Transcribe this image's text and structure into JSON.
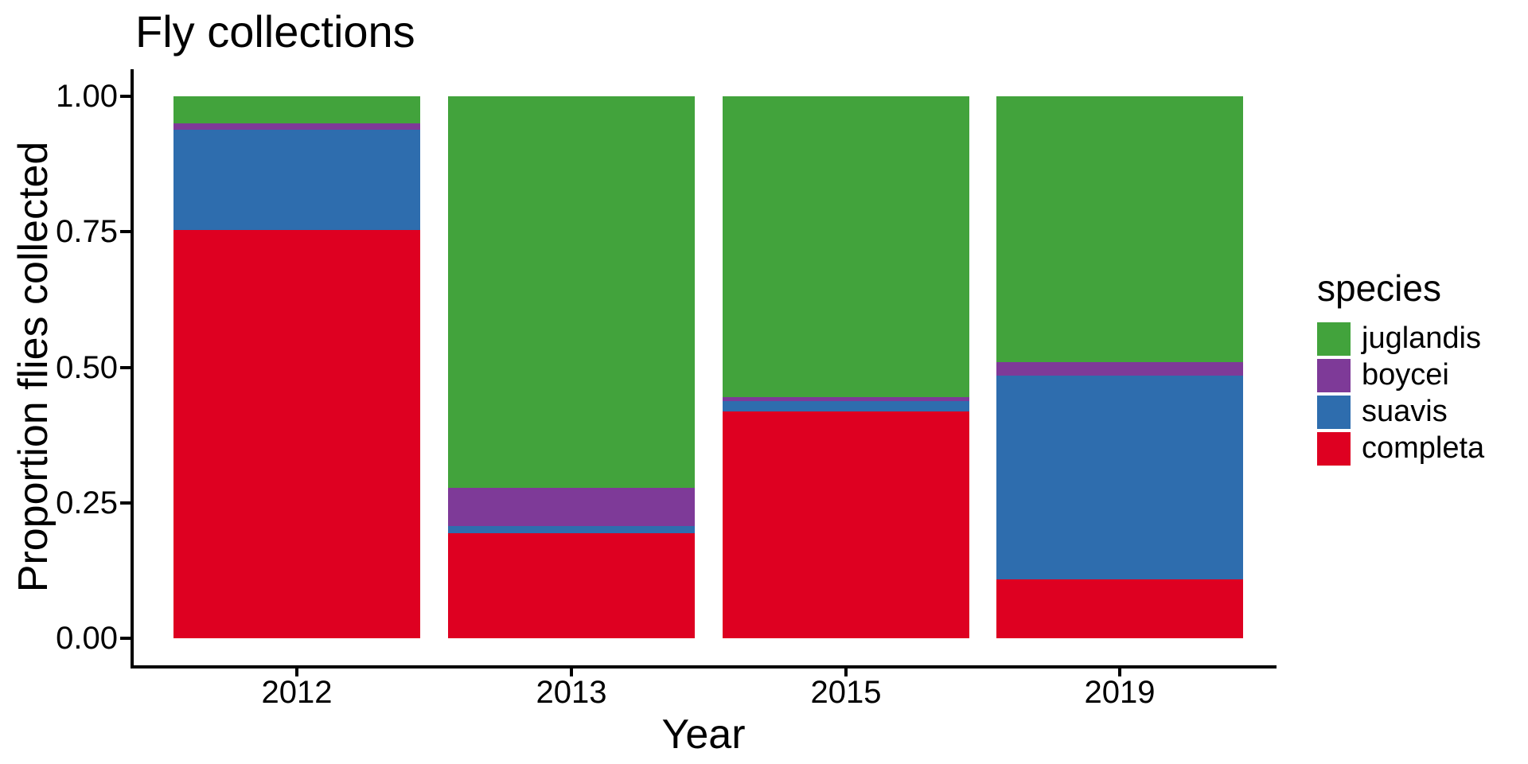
{
  "figure": {
    "title": "Fly collections",
    "background": "#FFFFFF",
    "text_color": "#000000",
    "axis_color": "#000000"
  },
  "chart_data": {
    "type": "bar",
    "variant": "stacked-normalized",
    "title": "Fly collections",
    "xlabel": "Year",
    "ylabel": "Proportion flies collected",
    "categories": [
      "2012",
      "2013",
      "2015",
      "2019"
    ],
    "series": [
      {
        "name": "completa",
        "color": "#DE0021",
        "values": [
          0.753,
          0.194,
          0.419,
          0.109
        ]
      },
      {
        "name": "suavis",
        "color": "#2E6DAE",
        "values": [
          0.185,
          0.013,
          0.019,
          0.376
        ]
      },
      {
        "name": "boycei",
        "color": "#7E3A98",
        "values": [
          0.012,
          0.071,
          0.007,
          0.025
        ]
      },
      {
        "name": "juglandis",
        "color": "#42A33C",
        "values": [
          0.05,
          0.722,
          0.555,
          0.49
        ]
      }
    ],
    "stack_order_bottom_to_top": [
      "completa",
      "suavis",
      "boycei",
      "juglandis"
    ],
    "ylim": [
      0,
      1
    ],
    "ytick_labels": [
      "0.00",
      "0.25",
      "0.50",
      "0.75",
      "1.00"
    ],
    "ytick_values": [
      0,
      0.25,
      0.5,
      0.75,
      1
    ],
    "grid": false,
    "legend": {
      "title": "species",
      "position": "right",
      "entries": [
        {
          "label": "juglandis",
          "color": "#42A33C"
        },
        {
          "label": "boycei",
          "color": "#7E3A98"
        },
        {
          "label": "suavis",
          "color": "#2E6DAE"
        },
        {
          "label": "completa",
          "color": "#DE0021"
        }
      ]
    }
  }
}
